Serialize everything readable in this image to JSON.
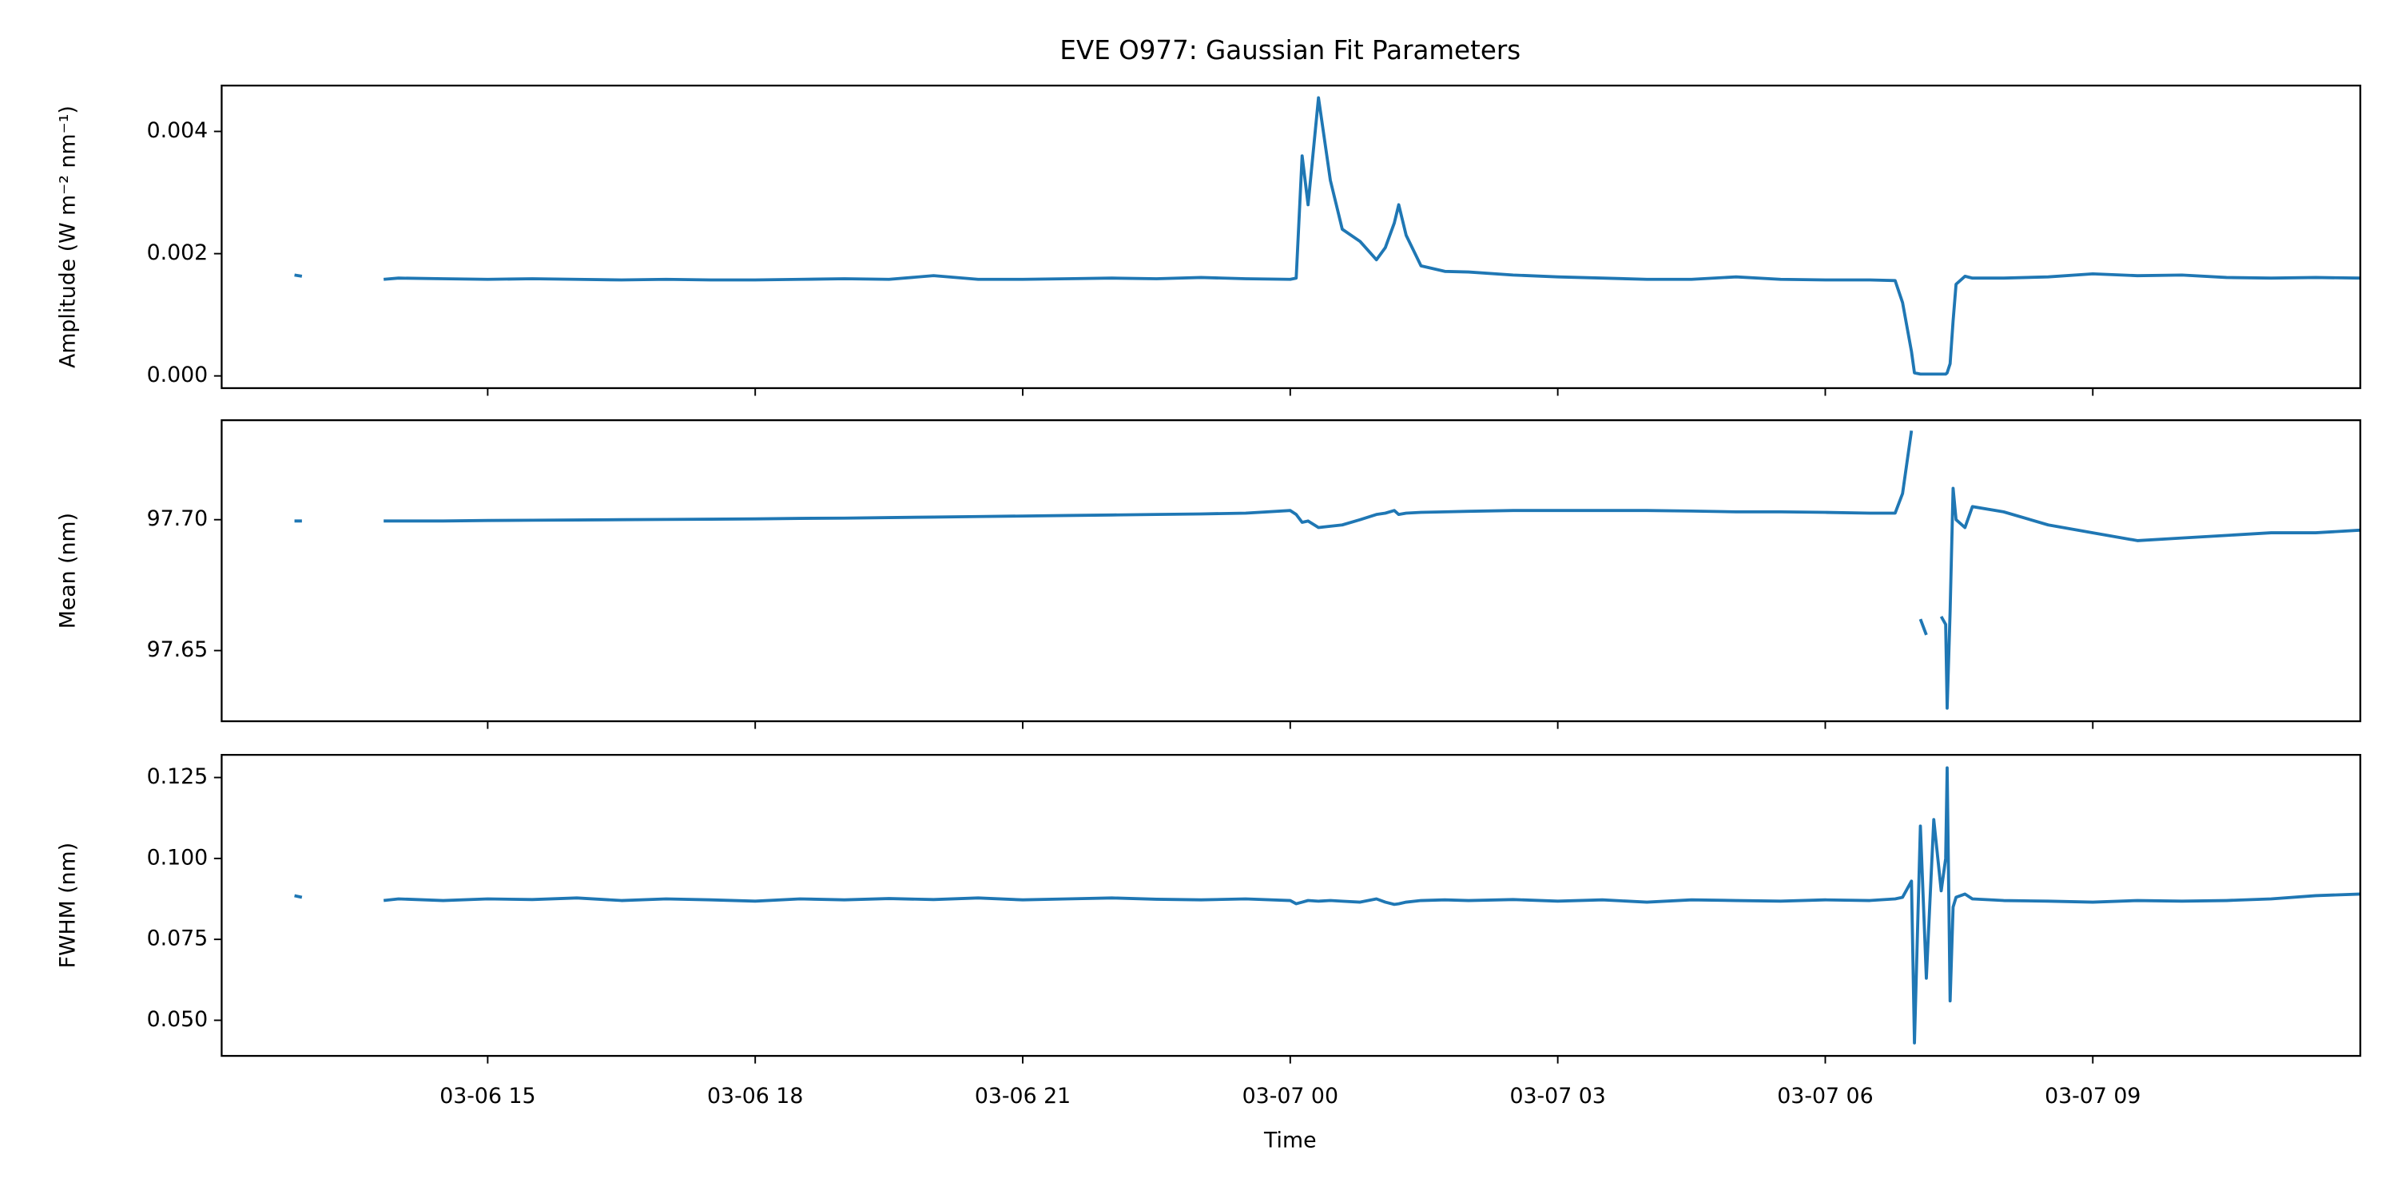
{
  "chart_data": {
    "type": "line",
    "title": "EVE O977: Gaussian Fit Parameters",
    "xlabel": "Time",
    "x": [
      "03-06 12:50",
      "03-06 12:55",
      "03-06 13:20",
      "03-06 13:50",
      "03-06 14:00",
      "03-06 14:30",
      "03-06 15:00",
      "03-06 15:30",
      "03-06 16:00",
      "03-06 16:30",
      "03-06 17:00",
      "03-06 17:30",
      "03-06 18:00",
      "03-06 18:30",
      "03-06 19:00",
      "03-06 19:30",
      "03-06 20:00",
      "03-06 20:30",
      "03-06 21:00",
      "03-06 21:30",
      "03-06 22:00",
      "03-06 22:30",
      "03-06 23:00",
      "03-06 23:30",
      "03-07 00:00",
      "03-07 00:04",
      "03-07 00:08",
      "03-07 00:12",
      "03-07 00:19",
      "03-07 00:27",
      "03-07 00:35",
      "03-07 00:47",
      "03-07 00:58",
      "03-07 01:04",
      "03-07 01:10",
      "03-07 01:13",
      "03-07 01:18",
      "03-07 01:28",
      "03-07 01:44",
      "03-07 02:00",
      "03-07 02:30",
      "03-07 03:00",
      "03-07 03:30",
      "03-07 04:00",
      "03-07 04:30",
      "03-07 05:00",
      "03-07 05:30",
      "03-07 06:00",
      "03-07 06:30",
      "03-07 06:47",
      "03-07 06:52",
      "03-07 06:58",
      "03-07 07:00",
      "03-07 07:04",
      "03-07 07:08",
      "03-07 07:13",
      "03-07 07:18",
      "03-07 07:21",
      "03-07 07:22",
      "03-07 07:24",
      "03-07 07:26",
      "03-07 07:28",
      "03-07 07:34",
      "03-07 07:39",
      "03-07 08:00",
      "03-07 08:30",
      "03-07 09:00",
      "03-07 09:30",
      "03-07 10:00",
      "03-07 10:30",
      "03-07 11:00",
      "03-07 11:30",
      "03-07 12:00"
    ],
    "xlim": [
      "03-06 12:01",
      "03-07 12:00"
    ],
    "xticks": [
      {
        "value": "03-06 15:00",
        "label": "03-06 15"
      },
      {
        "value": "03-06 18:00",
        "label": "03-06 18"
      },
      {
        "value": "03-06 21:00",
        "label": "03-06 21"
      },
      {
        "value": "03-07 00:00",
        "label": "03-07 00"
      },
      {
        "value": "03-07 03:00",
        "label": "03-07 03"
      },
      {
        "value": "03-07 06:00",
        "label": "03-07 06"
      },
      {
        "value": "03-07 09:00",
        "label": "03-07 09"
      }
    ],
    "panels": [
      {
        "ylabel": "Amplitude (W m⁻² nm⁻¹)",
        "ylim": [
          -0.0002,
          0.00475
        ],
        "yticks": [
          {
            "value": 0,
            "label": "0.000"
          },
          0.002,
          0.004
        ],
        "series": [
          {
            "color": "#1f77b4",
            "values": [
              0.00165,
              0.00163,
              null,
              0.00158,
              0.0016,
              0.00159,
              0.00158,
              0.00159,
              0.00158,
              0.00157,
              0.00158,
              0.00157,
              0.00157,
              0.00158,
              0.00159,
              0.00158,
              0.00164,
              0.00158,
              0.00158,
              0.00159,
              0.0016,
              0.00159,
              0.00161,
              0.00159,
              0.00158,
              0.0016,
              0.0036,
              0.0028,
              0.00455,
              0.0032,
              0.0024,
              0.0022,
              0.0019,
              0.0021,
              0.0025,
              0.0028,
              0.0023,
              0.0018,
              0.00171,
              0.0017,
              0.00165,
              0.00162,
              0.0016,
              0.00158,
              0.00158,
              0.00162,
              0.00158,
              0.00157,
              0.00157,
              0.00156,
              0.0012,
              0.0004,
              5e-05,
              3e-05,
              3e-05,
              3e-05,
              3e-05,
              3e-05,
              5e-05,
              0.0002,
              0.0009,
              0.0015,
              0.00163,
              0.0016,
              0.0016,
              0.00162,
              0.00167,
              0.00164,
              0.00165,
              0.00161,
              0.0016,
              0.00161,
              0.0016
            ]
          }
        ]
      },
      {
        "ylabel": "Mean (nm)",
        "ylim": [
          97.623,
          97.738
        ],
        "yticks": [
          97.65,
          {
            "value": 97.7,
            "label": "97.70"
          }
        ],
        "series": [
          {
            "color": "#1f77b4",
            "values": [
              97.6995,
              97.6995,
              null,
              97.6995,
              97.6995,
              97.6995,
              97.6997,
              97.6998,
              97.6999,
              97.7,
              97.7001,
              97.7002,
              97.7003,
              97.7005,
              97.7006,
              97.7008,
              97.701,
              97.7012,
              97.7014,
              97.7016,
              97.7018,
              97.702,
              97.7022,
              97.7025,
              97.7035,
              97.702,
              97.699,
              97.6995,
              97.697,
              97.6975,
              97.698,
              97.7,
              97.702,
              97.7025,
              97.7035,
              97.702,
              97.7025,
              97.7028,
              97.703,
              97.7032,
              97.7035,
              97.7035,
              97.7035,
              97.7035,
              97.7033,
              97.703,
              97.703,
              97.7028,
              97.7025,
              97.7025,
              97.71,
              97.734,
              null,
              97.662,
              97.656,
              null,
              97.663,
              97.66,
              97.628,
              97.665,
              97.712,
              97.7,
              97.697,
              97.705,
              97.703,
              97.698,
              97.695,
              97.692,
              97.693,
              97.694,
              97.695,
              97.695,
              97.696
            ]
          }
        ]
      },
      {
        "ylabel": "FWHM (nm)",
        "ylim": [
          0.039,
          0.132
        ],
        "yticks": [
          {
            "value": 0.05,
            "label": "0.050"
          },
          0.075,
          {
            "value": 0.1,
            "label": "0.100"
          },
          0.125
        ],
        "series": [
          {
            "color": "#1f77b4",
            "values": [
              0.0885,
              0.088,
              null,
              0.087,
              0.0875,
              0.087,
              0.0875,
              0.0873,
              0.0878,
              0.087,
              0.0875,
              0.0872,
              0.0868,
              0.0875,
              0.0872,
              0.0876,
              0.0873,
              0.0878,
              0.0872,
              0.0875,
              0.0878,
              0.0874,
              0.0872,
              0.0875,
              0.087,
              0.086,
              0.0865,
              0.087,
              0.0868,
              0.087,
              0.0868,
              0.0865,
              0.0875,
              0.0865,
              0.0858,
              0.086,
              0.0865,
              0.087,
              0.0872,
              0.087,
              0.0873,
              0.0868,
              0.0872,
              0.0865,
              0.0872,
              0.087,
              0.0868,
              0.0872,
              0.087,
              0.0875,
              0.088,
              0.093,
              0.043,
              0.11,
              0.063,
              0.112,
              0.09,
              0.1,
              0.128,
              0.056,
              0.085,
              0.088,
              0.089,
              0.0875,
              0.087,
              0.0868,
              0.0865,
              0.087,
              0.0868,
              0.087,
              0.0875,
              0.0885,
              0.089
            ]
          }
        ]
      }
    ]
  }
}
